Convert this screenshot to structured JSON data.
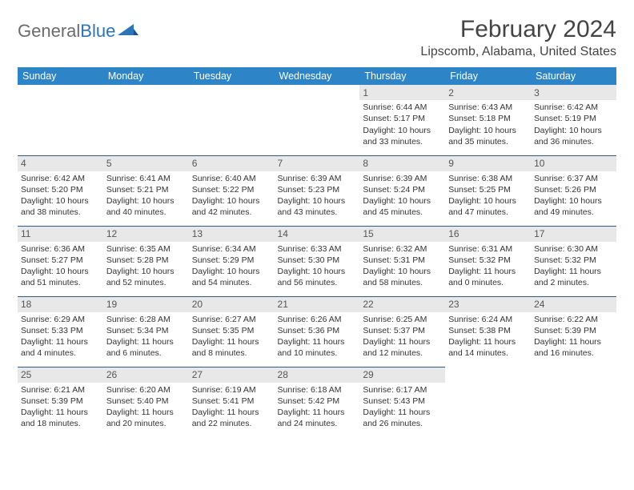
{
  "logo": {
    "text1": "General",
    "text2": "Blue"
  },
  "title": "February 2024",
  "location": "Lipscomb, Alabama, United States",
  "colors": {
    "header_bg": "#2d84c6",
    "header_text": "#ffffff",
    "daynum_bg": "#e8e8e8",
    "divider": "#2d5a8a",
    "logo_gray": "#6b6b6b",
    "logo_blue": "#2d73b8"
  },
  "days_of_week": [
    "Sunday",
    "Monday",
    "Tuesday",
    "Wednesday",
    "Thursday",
    "Friday",
    "Saturday"
  ],
  "weeks": [
    [
      null,
      null,
      null,
      null,
      {
        "n": "1",
        "sunrise": "Sunrise: 6:44 AM",
        "sunset": "Sunset: 5:17 PM",
        "daylight": "Daylight: 10 hours and 33 minutes."
      },
      {
        "n": "2",
        "sunrise": "Sunrise: 6:43 AM",
        "sunset": "Sunset: 5:18 PM",
        "daylight": "Daylight: 10 hours and 35 minutes."
      },
      {
        "n": "3",
        "sunrise": "Sunrise: 6:42 AM",
        "sunset": "Sunset: 5:19 PM",
        "daylight": "Daylight: 10 hours and 36 minutes."
      }
    ],
    [
      {
        "n": "4",
        "sunrise": "Sunrise: 6:42 AM",
        "sunset": "Sunset: 5:20 PM",
        "daylight": "Daylight: 10 hours and 38 minutes."
      },
      {
        "n": "5",
        "sunrise": "Sunrise: 6:41 AM",
        "sunset": "Sunset: 5:21 PM",
        "daylight": "Daylight: 10 hours and 40 minutes."
      },
      {
        "n": "6",
        "sunrise": "Sunrise: 6:40 AM",
        "sunset": "Sunset: 5:22 PM",
        "daylight": "Daylight: 10 hours and 42 minutes."
      },
      {
        "n": "7",
        "sunrise": "Sunrise: 6:39 AM",
        "sunset": "Sunset: 5:23 PM",
        "daylight": "Daylight: 10 hours and 43 minutes."
      },
      {
        "n": "8",
        "sunrise": "Sunrise: 6:39 AM",
        "sunset": "Sunset: 5:24 PM",
        "daylight": "Daylight: 10 hours and 45 minutes."
      },
      {
        "n": "9",
        "sunrise": "Sunrise: 6:38 AM",
        "sunset": "Sunset: 5:25 PM",
        "daylight": "Daylight: 10 hours and 47 minutes."
      },
      {
        "n": "10",
        "sunrise": "Sunrise: 6:37 AM",
        "sunset": "Sunset: 5:26 PM",
        "daylight": "Daylight: 10 hours and 49 minutes."
      }
    ],
    [
      {
        "n": "11",
        "sunrise": "Sunrise: 6:36 AM",
        "sunset": "Sunset: 5:27 PM",
        "daylight": "Daylight: 10 hours and 51 minutes."
      },
      {
        "n": "12",
        "sunrise": "Sunrise: 6:35 AM",
        "sunset": "Sunset: 5:28 PM",
        "daylight": "Daylight: 10 hours and 52 minutes."
      },
      {
        "n": "13",
        "sunrise": "Sunrise: 6:34 AM",
        "sunset": "Sunset: 5:29 PM",
        "daylight": "Daylight: 10 hours and 54 minutes."
      },
      {
        "n": "14",
        "sunrise": "Sunrise: 6:33 AM",
        "sunset": "Sunset: 5:30 PM",
        "daylight": "Daylight: 10 hours and 56 minutes."
      },
      {
        "n": "15",
        "sunrise": "Sunrise: 6:32 AM",
        "sunset": "Sunset: 5:31 PM",
        "daylight": "Daylight: 10 hours and 58 minutes."
      },
      {
        "n": "16",
        "sunrise": "Sunrise: 6:31 AM",
        "sunset": "Sunset: 5:32 PM",
        "daylight": "Daylight: 11 hours and 0 minutes."
      },
      {
        "n": "17",
        "sunrise": "Sunrise: 6:30 AM",
        "sunset": "Sunset: 5:32 PM",
        "daylight": "Daylight: 11 hours and 2 minutes."
      }
    ],
    [
      {
        "n": "18",
        "sunrise": "Sunrise: 6:29 AM",
        "sunset": "Sunset: 5:33 PM",
        "daylight": "Daylight: 11 hours and 4 minutes."
      },
      {
        "n": "19",
        "sunrise": "Sunrise: 6:28 AM",
        "sunset": "Sunset: 5:34 PM",
        "daylight": "Daylight: 11 hours and 6 minutes."
      },
      {
        "n": "20",
        "sunrise": "Sunrise: 6:27 AM",
        "sunset": "Sunset: 5:35 PM",
        "daylight": "Daylight: 11 hours and 8 minutes."
      },
      {
        "n": "21",
        "sunrise": "Sunrise: 6:26 AM",
        "sunset": "Sunset: 5:36 PM",
        "daylight": "Daylight: 11 hours and 10 minutes."
      },
      {
        "n": "22",
        "sunrise": "Sunrise: 6:25 AM",
        "sunset": "Sunset: 5:37 PM",
        "daylight": "Daylight: 11 hours and 12 minutes."
      },
      {
        "n": "23",
        "sunrise": "Sunrise: 6:24 AM",
        "sunset": "Sunset: 5:38 PM",
        "daylight": "Daylight: 11 hours and 14 minutes."
      },
      {
        "n": "24",
        "sunrise": "Sunrise: 6:22 AM",
        "sunset": "Sunset: 5:39 PM",
        "daylight": "Daylight: 11 hours and 16 minutes."
      }
    ],
    [
      {
        "n": "25",
        "sunrise": "Sunrise: 6:21 AM",
        "sunset": "Sunset: 5:39 PM",
        "daylight": "Daylight: 11 hours and 18 minutes."
      },
      {
        "n": "26",
        "sunrise": "Sunrise: 6:20 AM",
        "sunset": "Sunset: 5:40 PM",
        "daylight": "Daylight: 11 hours and 20 minutes."
      },
      {
        "n": "27",
        "sunrise": "Sunrise: 6:19 AM",
        "sunset": "Sunset: 5:41 PM",
        "daylight": "Daylight: 11 hours and 22 minutes."
      },
      {
        "n": "28",
        "sunrise": "Sunrise: 6:18 AM",
        "sunset": "Sunset: 5:42 PM",
        "daylight": "Daylight: 11 hours and 24 minutes."
      },
      {
        "n": "29",
        "sunrise": "Sunrise: 6:17 AM",
        "sunset": "Sunset: 5:43 PM",
        "daylight": "Daylight: 11 hours and 26 minutes."
      },
      null,
      null
    ]
  ]
}
